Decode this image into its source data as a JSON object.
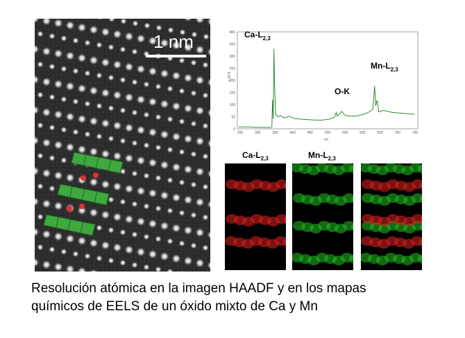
{
  "haadf": {
    "scale_bar_label": "1 nm"
  },
  "spectrum": {
    "peaks": [
      {
        "label_main": "Ca-L",
        "label_sub": "2,3",
        "ev": 347
      },
      {
        "label_main": "O-K",
        "label_sub": "",
        "ev": 532
      },
      {
        "label_main": "Mn-L",
        "label_sub": "2,3",
        "ev": 640
      }
    ],
    "x_ticks": [
      "250",
      "300",
      "350",
      "400",
      "450",
      "500",
      "550",
      "600",
      "650",
      "700",
      "750"
    ],
    "y_ticks": [
      "400",
      "350",
      "300",
      "250",
      "200",
      "150",
      "100",
      "50",
      "0"
    ],
    "x_unit": "eV",
    "y_unit": "x 10^3",
    "line_color": "#2e8b2e"
  },
  "maps": {
    "ca": {
      "label_main": "Ca-L",
      "label_sub": "2,3",
      "color": "#e02020"
    },
    "mn": {
      "label_main": "Mn-L",
      "label_sub": "2,3",
      "color": "#20c020"
    },
    "overlay": {
      "label_main": "",
      "label_sub": ""
    }
  },
  "caption": {
    "line1": "Resolución atómica en la imagen HAADF y en los mapas",
    "line2": "químicos de EELS  de un óxido mixto de Ca y Mn"
  }
}
